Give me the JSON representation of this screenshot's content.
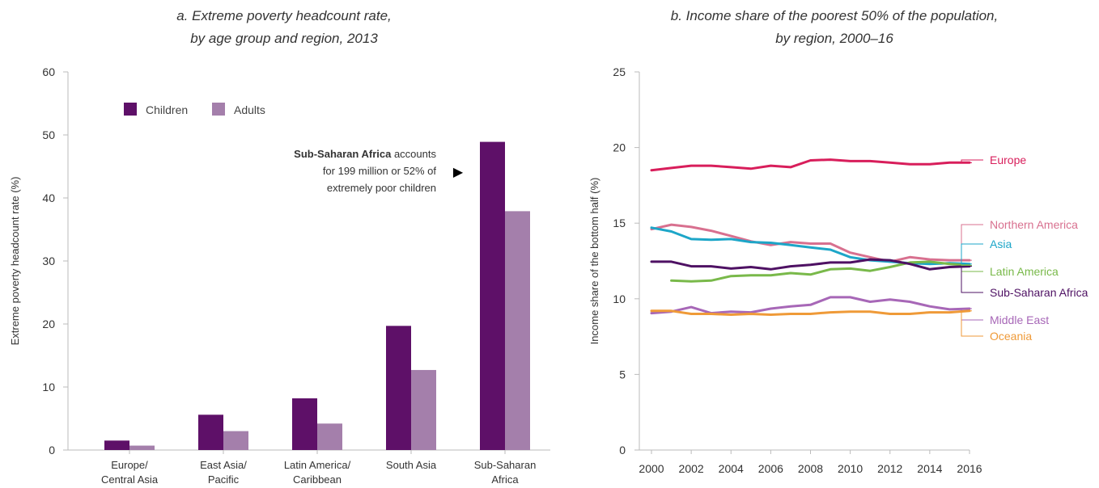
{
  "chart_data": [
    {
      "type": "bar",
      "title_lines": [
        "a. Extreme poverty headcount rate,",
        "by age group and region, 2013"
      ],
      "ylabel": "Extreme poverty headcount rate (%)",
      "ylim": [
        0,
        60
      ],
      "yticks": [
        0,
        10,
        20,
        30,
        40,
        50,
        60
      ],
      "categories": [
        [
          "Europe/",
          "Central Asia"
        ],
        [
          "East Asia/",
          "Pacific"
        ],
        [
          "Latin America/",
          "Caribbean"
        ],
        [
          "South Asia"
        ],
        [
          "Sub-Saharan",
          "Africa"
        ]
      ],
      "series": [
        {
          "name": "Children",
          "color": "#5e1068",
          "values": [
            1.5,
            5.6,
            8.2,
            19.7,
            48.9
          ]
        },
        {
          "name": "Adults",
          "color": "#a47fab",
          "values": [
            0.7,
            3.0,
            4.2,
            12.7,
            37.9
          ]
        }
      ],
      "legend_position": "top-left",
      "annotation": {
        "bold": "Sub-Saharan Africa",
        "line1_rest": " accounts",
        "line2": "for 199 million or 52% of",
        "line3": "extremely poor children",
        "marker": "▶"
      }
    },
    {
      "type": "line",
      "title_lines": [
        "b. Income share of the poorest 50% of the population,",
        "by region, 2000–16"
      ],
      "ylabel": "Income share of the bottom half (%)",
      "ylim": [
        0,
        25
      ],
      "yticks": [
        0,
        5,
        10,
        15,
        20,
        25
      ],
      "xlim": [
        2000,
        2016
      ],
      "xticks": [
        2000,
        2002,
        2004,
        2006,
        2008,
        2010,
        2012,
        2014,
        2016
      ],
      "x": [
        2000,
        2001,
        2002,
        2003,
        2004,
        2005,
        2006,
        2007,
        2008,
        2009,
        2010,
        2011,
        2012,
        2013,
        2014,
        2015,
        2016
      ],
      "legend_position": "right",
      "series": [
        {
          "name": "Europe",
          "color": "#d81e5b",
          "values": [
            18.5,
            18.65,
            18.8,
            18.8,
            18.7,
            18.6,
            18.8,
            18.7,
            19.15,
            19.2,
            19.1,
            19.1,
            19.0,
            18.9,
            18.9,
            19.0,
            19.0
          ]
        },
        {
          "name": "Northern America",
          "color": "#d8708f",
          "values": [
            14.6,
            14.9,
            14.75,
            14.5,
            14.15,
            13.8,
            13.55,
            13.75,
            13.65,
            13.65,
            13.05,
            12.75,
            12.45,
            12.75,
            12.6,
            12.55,
            12.55
          ]
        },
        {
          "name": "Asia",
          "color": "#1da6c8",
          "values": [
            14.7,
            14.45,
            13.95,
            13.9,
            13.95,
            13.75,
            13.7,
            13.55,
            13.4,
            13.25,
            12.75,
            12.55,
            12.45,
            12.35,
            12.3,
            12.35,
            12.3
          ]
        },
        {
          "name": "Latin America",
          "color": "#79b94a",
          "values": [
            null,
            11.2,
            11.15,
            11.2,
            11.5,
            11.55,
            11.55,
            11.7,
            11.6,
            11.95,
            12.0,
            11.85,
            12.1,
            12.4,
            12.45,
            12.3,
            12.2
          ]
        },
        {
          "name": "Sub-Saharan Africa",
          "color": "#4e1163",
          "values": [
            12.45,
            12.45,
            12.15,
            12.15,
            12.0,
            12.1,
            11.95,
            12.15,
            12.25,
            12.4,
            12.4,
            12.6,
            12.55,
            12.3,
            11.95,
            12.1,
            12.15
          ]
        },
        {
          "name": "Middle East",
          "color": "#a767b7",
          "values": [
            9.05,
            9.15,
            9.45,
            9.05,
            9.15,
            9.1,
            9.35,
            9.5,
            9.6,
            10.1,
            10.1,
            9.8,
            9.95,
            9.8,
            9.5,
            9.3,
            9.35
          ]
        },
        {
          "name": "Oceania",
          "color": "#ef9a38",
          "values": [
            9.2,
            9.2,
            9.0,
            9.0,
            8.95,
            9.0,
            8.95,
            9.0,
            9.0,
            9.1,
            9.15,
            9.15,
            9.0,
            9.0,
            9.1,
            9.1,
            9.2
          ]
        }
      ]
    }
  ]
}
